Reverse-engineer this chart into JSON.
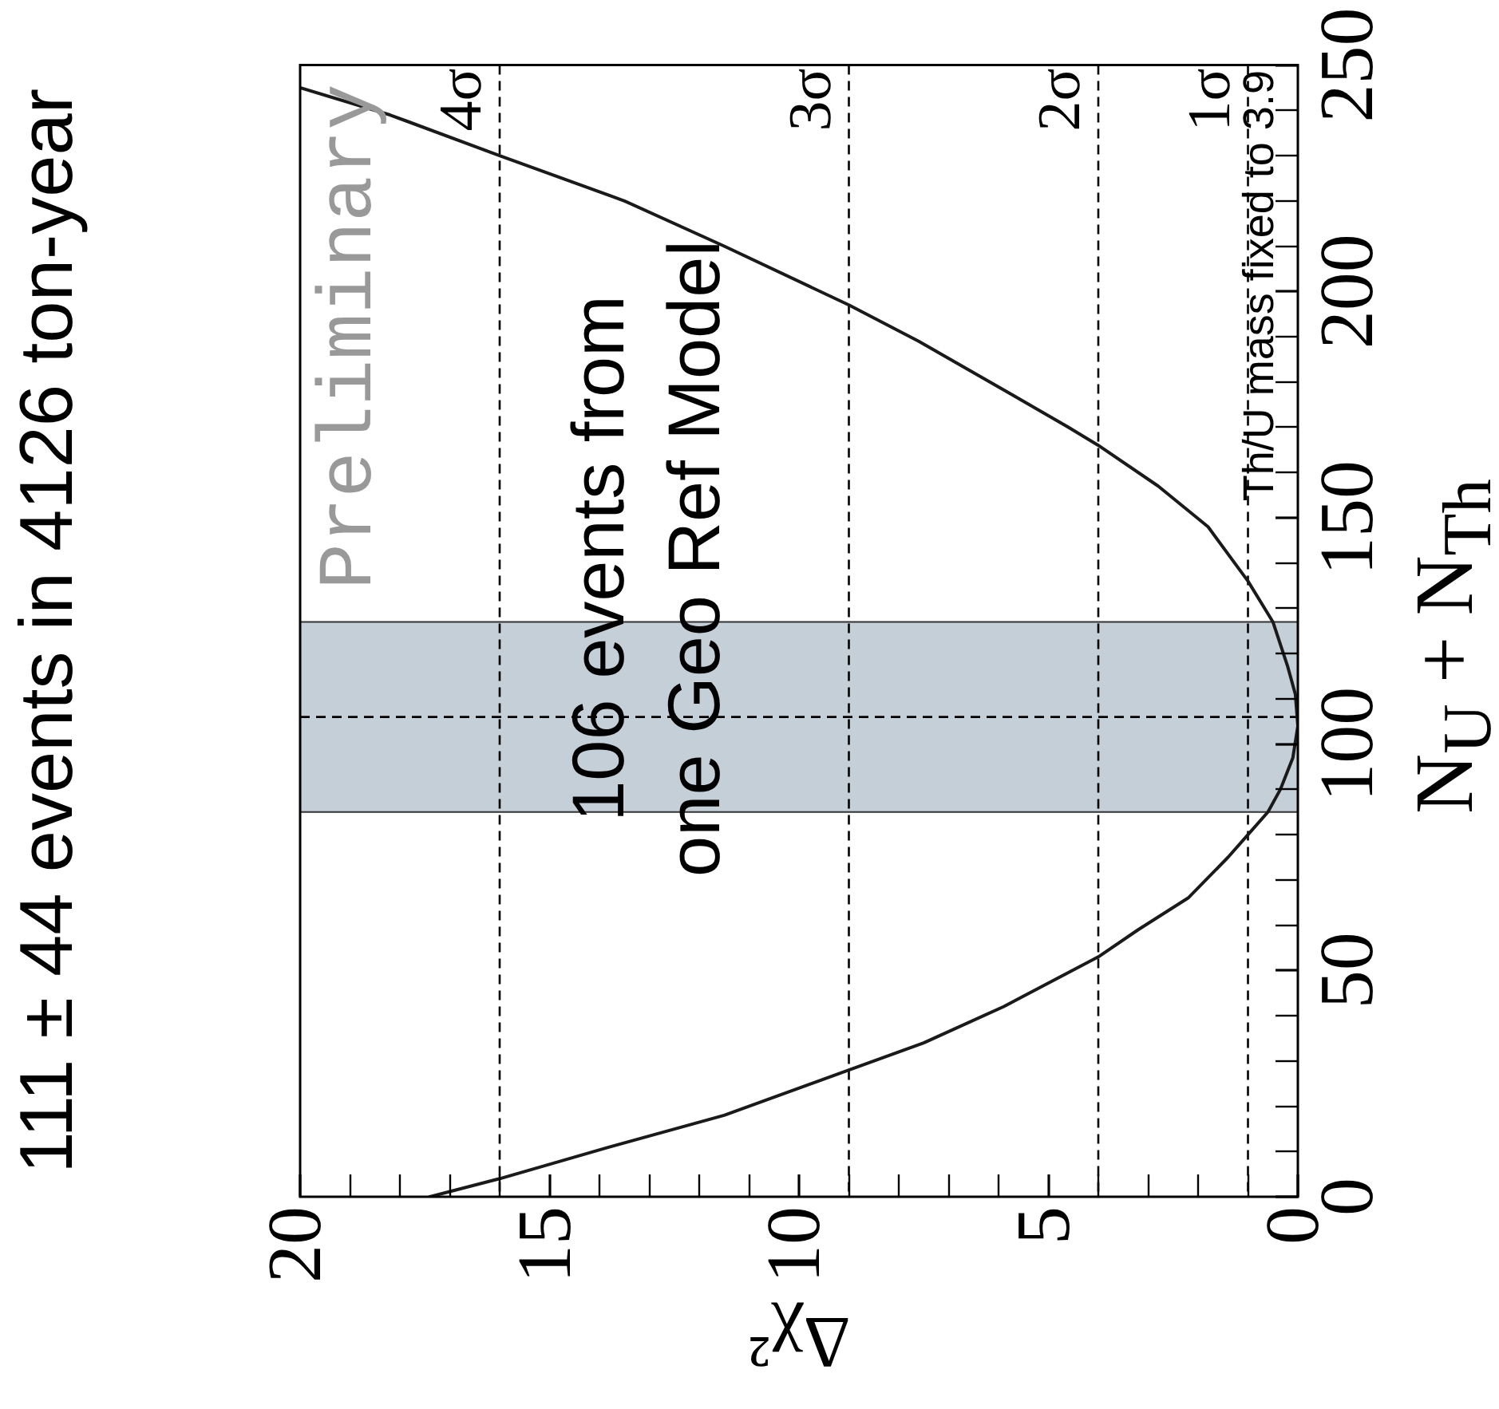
{
  "chart_data": {
    "type": "line",
    "title": "111 ± 44 events in 4126 ton-year",
    "xlabel": "Δχ²",
    "ylabel": "N$_{U}$ + N$_{Th}$",
    "x": [
      17.4,
      16.0,
      13.8,
      11.5,
      9.0,
      7.5,
      5.9,
      4.0,
      3.2,
      2.2,
      1.4,
      1.0,
      0.6,
      0.35,
      0.1,
      0,
      0.05,
      0.2,
      0.5,
      1.0,
      1.8,
      2.8,
      4.0,
      4.6,
      5.7,
      7.6,
      9.0,
      11.5,
      13.5,
      16.0,
      18.2,
      20.0
    ],
    "series": [
      {
        "color": "#1a1a1a",
        "values": [
          0,
          4,
          11,
          18,
          28,
          34,
          42,
          53,
          59,
          66,
          75,
          80,
          85,
          90,
          97,
          104,
          111,
          117,
          127,
          136,
          148,
          157,
          166,
          170,
          177,
          189,
          197,
          210,
          220,
          230,
          239,
          245
        ]
      }
    ],
    "xlim": [
      20,
      0
    ],
    "ylim": [
      0,
      250
    ],
    "xticks": [
      20,
      {
        "value": 19,
        "label": null
      },
      {
        "value": 18,
        "label": null
      },
      {
        "value": 17,
        "label": null
      },
      {
        "value": 16,
        "label": null
      },
      15,
      {
        "value": 14,
        "label": null
      },
      {
        "value": 13,
        "label": null
      },
      {
        "value": 12,
        "label": null
      },
      {
        "value": 11,
        "label": null
      },
      10,
      {
        "value": 9,
        "label": null
      },
      {
        "value": 8,
        "label": null
      },
      {
        "value": 7,
        "label": null
      },
      {
        "value": 6,
        "label": null
      },
      5,
      {
        "value": 4,
        "label": null
      },
      {
        "value": 3,
        "label": null
      },
      {
        "value": 2,
        "label": null
      },
      {
        "value": 1,
        "label": null
      },
      0
    ],
    "yticks": [
      0,
      {
        "value": 10,
        "label": null
      },
      {
        "value": 20,
        "label": null
      },
      {
        "value": 30,
        "label": null
      },
      {
        "value": 40,
        "label": null
      },
      50,
      {
        "value": 60,
        "label": null
      },
      {
        "value": 70,
        "label": null
      },
      {
        "value": 80,
        "label": null
      },
      {
        "value": 90,
        "label": null
      },
      100,
      {
        "value": 110,
        "label": null
      },
      {
        "value": 120,
        "label": null
      },
      {
        "value": 130,
        "label": null
      },
      {
        "value": 140,
        "label": null
      },
      150,
      {
        "value": 160,
        "label": null
      },
      {
        "value": 170,
        "label": null
      },
      {
        "value": 180,
        "label": null
      },
      {
        "value": 190,
        "label": null
      },
      200,
      {
        "value": 210,
        "label": null
      },
      {
        "value": 220,
        "label": null
      },
      {
        "value": 230,
        "label": null
      },
      {
        "value": 240,
        "label": null
      },
      250
    ],
    "ref_lines": [
      {
        "axis": "x",
        "value": 16,
        "label": "4σ",
        "line_style": "dashed"
      },
      {
        "axis": "x",
        "value": 9,
        "label": "3σ",
        "line_style": "dashed"
      },
      {
        "axis": "x",
        "value": 4,
        "label": "2σ",
        "line_style": "dashed"
      },
      {
        "axis": "x",
        "value": 1,
        "label": "1σ",
        "line_style": "dashed"
      },
      {
        "axis": "y",
        "value": 106,
        "line_style": "dashed"
      }
    ],
    "bands": [
      {
        "axis": "y",
        "from": 85,
        "to": 127,
        "color": "#c4cfd7"
      }
    ],
    "annotations": [
      "Preliminary",
      "106 events from one Geo Ref Model",
      "Th/U mass fixed to 3.9"
    ],
    "marker": "none",
    "line_style": "solid"
  }
}
